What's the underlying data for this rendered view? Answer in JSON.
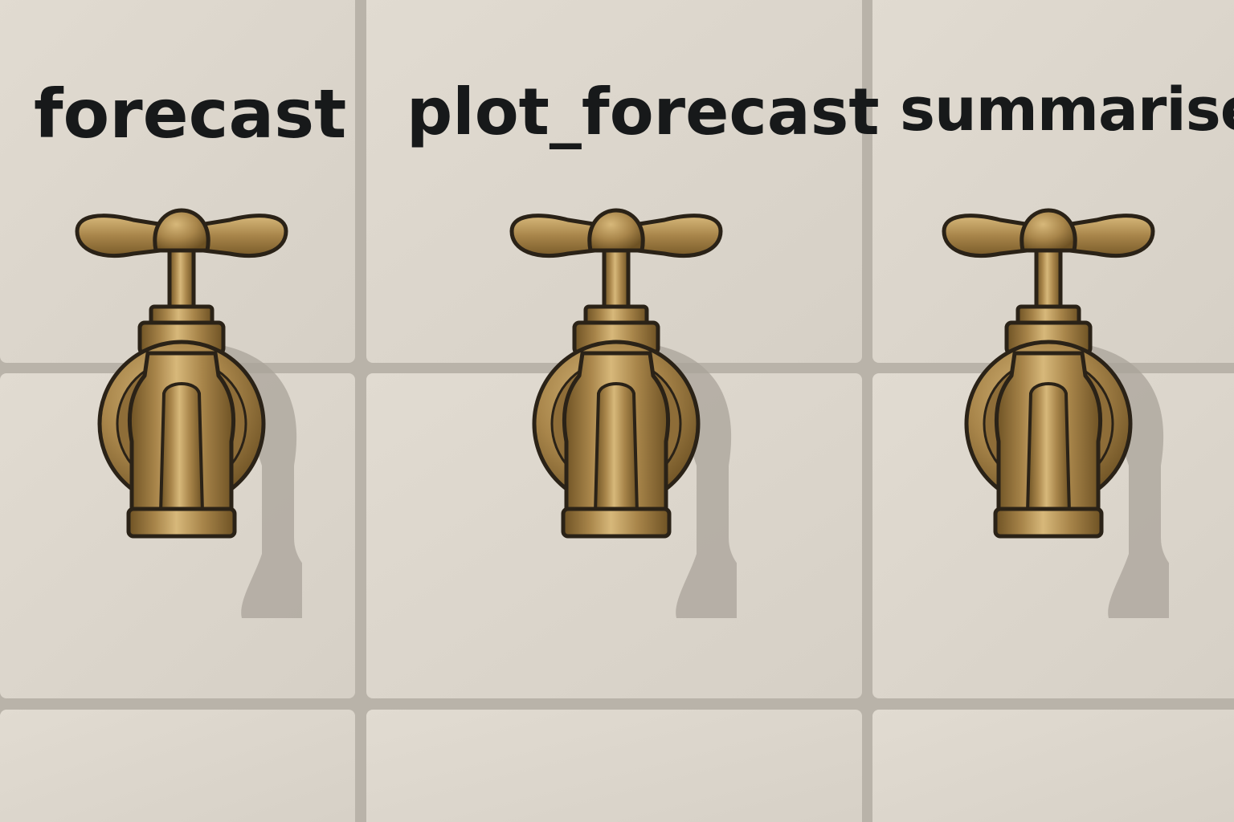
{
  "labels": [
    {
      "text": "forecast"
    },
    {
      "text": "plot_forecast"
    },
    {
      "text": "summarise"
    }
  ],
  "colors": {
    "tile": "#ddd7cd",
    "grout": "#b9b3a9",
    "brass": "#a8854a",
    "brass_light": "#d7b87a",
    "brass_dark": "#6e5224",
    "outline": "#2a2217",
    "label": "#17191a",
    "shadow": "#a9a399"
  },
  "icons": [
    "brass-faucet-icon"
  ]
}
